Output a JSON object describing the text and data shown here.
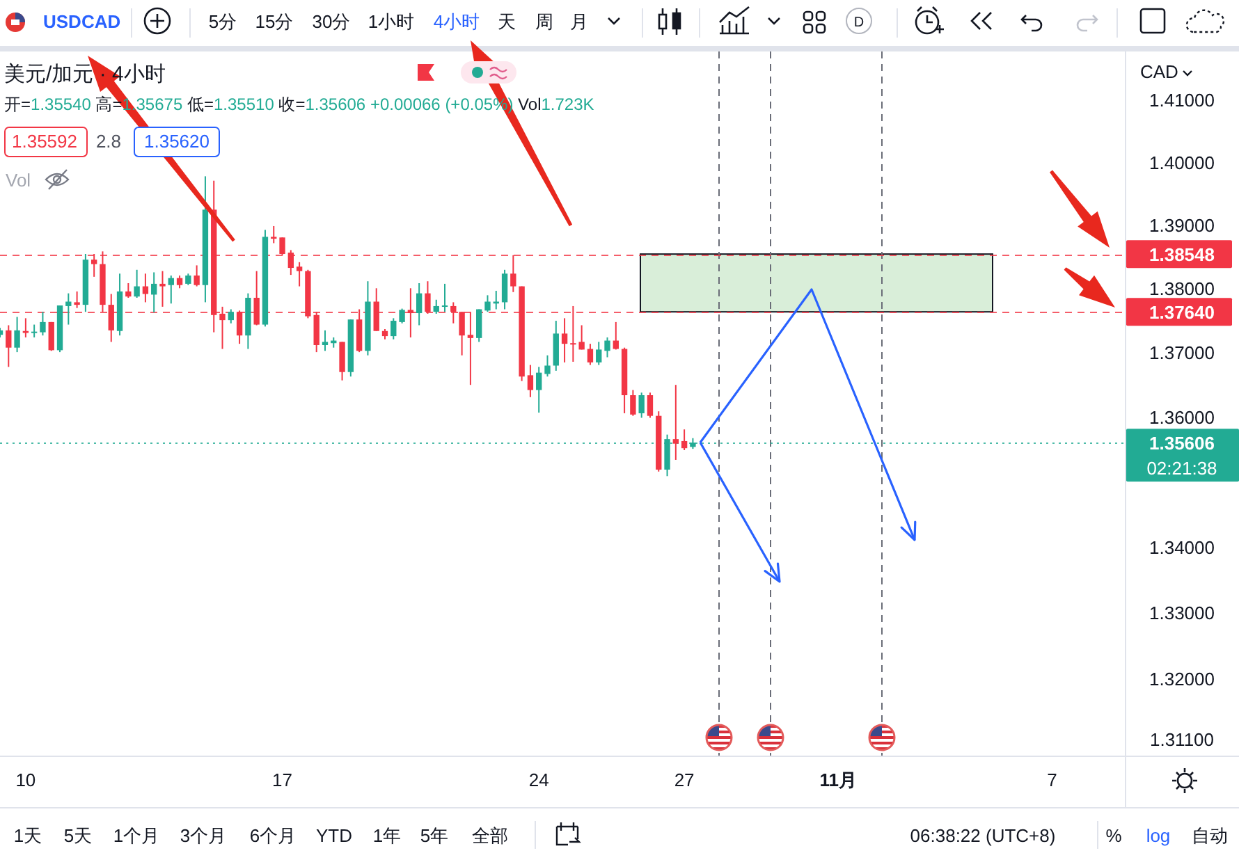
{
  "chart_data": {
    "type": "candlestick",
    "title": "美元/加元 · 4小时",
    "subtitle": "开=1.35540 高=1.35675 低=1.35510 收=1.35606 +0.00066 (+0.05%) Vol1.723K",
    "ylabel": "CAD",
    "categories": [
      null,
      null,
      null,
      "10",
      null,
      null,
      null,
      null,
      null,
      null,
      null,
      null,
      null,
      null,
      null,
      null,
      null,
      null,
      null,
      null,
      null,
      null,
      null,
      null,
      null,
      null,
      null,
      null,
      null,
      null,
      null,
      null,
      null,
      "17",
      null,
      null,
      null,
      null,
      null,
      null,
      null,
      null,
      null,
      null,
      null,
      null,
      null,
      null,
      null,
      null,
      null,
      null,
      null,
      null,
      null,
      null,
      null,
      null,
      null,
      null,
      null,
      null,
      null,
      "24",
      null,
      null,
      null,
      null,
      null,
      null,
      null,
      null,
      null,
      null,
      null,
      null,
      null,
      null,
      null,
      null,
      "27",
      null,
      null,
      null,
      null,
      null,
      null,
      null,
      null,
      null,
      null,
      null,
      null,
      null,
      null,
      null,
      null,
      null,
      "11月",
      null,
      null,
      null,
      null,
      null,
      null,
      null,
      null,
      null,
      null,
      null,
      null,
      null,
      null,
      null,
      null,
      null,
      null,
      null,
      null,
      null,
      null,
      null,
      null,
      "7",
      null,
      null,
      null,
      null,
      null,
      null,
      null,
      null
    ],
    "ohlc": [
      [
        1.3728,
        1.3739,
        1.3724,
        1.3735
      ],
      [
        1.3735,
        1.3743,
        1.3678,
        1.3708
      ],
      [
        1.3708,
        1.3756,
        1.3701,
        1.3735
      ],
      [
        1.3734,
        1.3754,
        1.3724,
        1.3731
      ],
      [
        1.3732,
        1.3744,
        1.3724,
        1.3733
      ],
      [
        1.3732,
        1.3764,
        1.3727,
        1.3748
      ],
      [
        1.3748,
        1.3748,
        1.3703,
        1.3704
      ],
      [
        1.3704,
        1.3774,
        1.3701,
        1.3774
      ],
      [
        1.3773,
        1.3793,
        1.3744,
        1.378
      ],
      [
        1.3779,
        1.3796,
        1.377,
        1.3775
      ],
      [
        1.3775,
        1.3855,
        1.3764,
        1.3846
      ],
      [
        1.3846,
        1.3855,
        1.3819,
        1.3839
      ],
      [
        1.3839,
        1.3859,
        1.3764,
        1.3775
      ],
      [
        1.3775,
        1.3792,
        1.3717,
        1.3735
      ],
      [
        1.3734,
        1.3824,
        1.3727,
        1.3796
      ],
      [
        1.3796,
        1.3809,
        1.3786,
        1.3788
      ],
      [
        1.3788,
        1.383,
        1.3786,
        1.3804
      ],
      [
        1.3804,
        1.3824,
        1.3779,
        1.3792
      ],
      [
        1.3791,
        1.3826,
        1.3763,
        1.3808
      ],
      [
        1.3808,
        1.3828,
        1.3772,
        1.3804
      ],
      [
        1.3806,
        1.3821,
        1.3777,
        1.3817
      ],
      [
        1.3817,
        1.3821,
        1.3801,
        1.3806
      ],
      [
        1.3808,
        1.3824,
        1.3806,
        1.3821
      ],
      [
        1.3821,
        1.3837,
        1.3804,
        1.3806
      ],
      [
        1.3806,
        1.3978,
        1.3779,
        1.3925
      ],
      [
        1.3925,
        1.3971,
        1.3732,
        1.3759
      ],
      [
        1.3761,
        1.3772,
        1.3706,
        1.3751
      ],
      [
        1.3751,
        1.3768,
        1.3746,
        1.3764
      ],
      [
        1.3764,
        1.3766,
        1.3714,
        1.3727
      ],
      [
        1.3727,
        1.3793,
        1.3706,
        1.3786
      ],
      [
        1.3786,
        1.3828,
        1.3743,
        1.3744
      ],
      [
        1.3744,
        1.3893,
        1.3741,
        1.3882
      ],
      [
        1.3882,
        1.3899,
        1.3872,
        1.3879
      ],
      [
        1.3881,
        1.3881,
        1.3853,
        1.3855
      ],
      [
        1.3857,
        1.3861,
        1.3822,
        1.3833
      ],
      [
        1.3835,
        1.3842,
        1.3804,
        1.3828
      ],
      [
        1.3828,
        1.383,
        1.3754,
        1.3757
      ],
      [
        1.3759,
        1.3764,
        1.3701,
        1.3712
      ],
      [
        1.3712,
        1.3735,
        1.3703,
        1.3717
      ],
      [
        1.3715,
        1.3724,
        1.3708,
        1.3719
      ],
      [
        1.3717,
        1.3717,
        1.3657,
        1.367
      ],
      [
        1.367,
        1.3752,
        1.3663,
        1.3752
      ],
      [
        1.3752,
        1.3768,
        1.3701,
        1.3703
      ],
      [
        1.3703,
        1.3812,
        1.3696,
        1.378
      ],
      [
        1.378,
        1.3801,
        1.3734,
        1.3734
      ],
      [
        1.3734,
        1.3737,
        1.3721,
        1.3726
      ],
      [
        1.3726,
        1.3754,
        1.3721,
        1.375
      ],
      [
        1.3748,
        1.3769,
        1.3746,
        1.3767
      ],
      [
        1.3767,
        1.3801,
        1.3724,
        1.3762
      ],
      [
        1.3762,
        1.3809,
        1.3743,
        1.3793
      ],
      [
        1.3793,
        1.3812,
        1.3761,
        1.3764
      ],
      [
        1.3764,
        1.3783,
        1.3761,
        1.3773
      ],
      [
        1.3773,
        1.3808,
        1.3764,
        1.3774
      ],
      [
        1.3773,
        1.3779,
        1.3746,
        1.3764
      ],
      [
        1.3764,
        1.3764,
        1.3696,
        1.3727
      ],
      [
        1.3728,
        1.3764,
        1.365,
        1.3723
      ],
      [
        1.3723,
        1.3768,
        1.3717,
        1.3768
      ],
      [
        1.3766,
        1.379,
        1.3764,
        1.378
      ],
      [
        1.3777,
        1.3797,
        1.3768,
        1.378
      ],
      [
        1.3779,
        1.383,
        1.3768,
        1.3824
      ],
      [
        1.3824,
        1.3853,
        1.3795,
        1.3804
      ],
      [
        1.3804,
        1.3804,
        1.3656,
        1.3663
      ],
      [
        1.3665,
        1.3681,
        1.3631,
        1.3642
      ],
      [
        1.3642,
        1.3678,
        1.3607,
        1.3669
      ],
      [
        1.3667,
        1.3696,
        1.3663,
        1.368
      ],
      [
        1.368,
        1.375,
        1.3672,
        1.373
      ],
      [
        1.373,
        1.3754,
        1.3685,
        1.3714
      ],
      [
        1.3715,
        1.3773,
        1.3686,
        1.3714
      ],
      [
        1.3717,
        1.3743,
        1.3705,
        1.3705
      ],
      [
        1.3706,
        1.3714,
        1.3681,
        1.3685
      ],
      [
        1.3685,
        1.3717,
        1.3681,
        1.3705
      ],
      [
        1.3703,
        1.3724,
        1.3693,
        1.3719
      ],
      [
        1.3719,
        1.3748,
        1.3705,
        1.3706
      ],
      [
        1.3706,
        1.3708,
        1.3606,
        1.3634
      ],
      [
        1.3634,
        1.3642,
        1.3602,
        1.3604
      ],
      [
        1.3606,
        1.3638,
        1.3599,
        1.3634
      ],
      [
        1.3634,
        1.3638,
        1.3599,
        1.3602
      ],
      [
        1.3602,
        1.3609,
        1.3516,
        1.3519
      ],
      [
        1.3519,
        1.3573,
        1.3509,
        1.3566
      ],
      [
        1.3566,
        1.365,
        1.3534,
        1.3559
      ],
      [
        1.3563,
        1.3581,
        1.3549,
        1.3552
      ],
      [
        1.3554,
        1.35675,
        1.3551,
        1.35606
      ],
      null,
      null,
      null,
      null,
      null,
      null,
      null,
      null,
      null,
      null,
      null,
      null,
      null,
      null,
      null,
      null,
      null,
      null,
      null,
      null,
      null,
      null,
      null,
      null,
      null,
      null,
      null,
      null,
      null,
      null,
      null,
      null,
      null,
      null,
      null,
      null,
      null,
      null,
      null,
      null,
      null,
      null,
      null,
      null,
      null,
      null,
      null,
      null,
      null,
      null
    ],
    "ylim": [
      1.3086,
      1.4178
    ],
    "log": true,
    "yticks": [
      {
        "value": 1.311,
        "label": "1.31100"
      },
      {
        "value": 1.32,
        "label": "1.32000"
      },
      {
        "value": 1.33,
        "label": "1.33000"
      },
      {
        "value": 1.34,
        "label": "1.34000"
      },
      {
        "value": 1.36,
        "label": "1.36000"
      },
      {
        "value": 1.37,
        "label": "1.37000"
      },
      {
        "value": 1.38,
        "label": "1.38000"
      },
      {
        "value": 1.39,
        "label": "1.39000"
      },
      {
        "value": 1.4,
        "label": "1.40000"
      },
      {
        "value": 1.41,
        "label": "1.41000"
      }
    ],
    "bands": [
      {
        "axis": "y",
        "from": 1.3764,
        "to": 1.38548,
        "color": "#d9eed9"
      }
    ],
    "ref_lines": [
      {
        "axis": "y",
        "value": 1.38548,
        "label": "1.38548",
        "color": "#f23645",
        "line_style": "dashed"
      },
      {
        "axis": "y",
        "value": 1.3764,
        "label": "1.37640",
        "color": "#f23645",
        "line_style": "dashed"
      },
      {
        "axis": "y",
        "value": 1.35606,
        "label": "1.35606\n02:21:38",
        "color": "#22ab94",
        "line_style": "dotted"
      }
    ],
    "annotations": [
      "USDCAD",
      "5分",
      "15分",
      "30分",
      "1小时",
      "4小时",
      "天",
      "周",
      "月",
      "D",
      "1.35592",
      "2.8",
      "1.35620",
      "Vol",
      "1天",
      "5天",
      "1个月",
      "3个月",
      "6个月",
      "YTD",
      "1年",
      "5年",
      "全部",
      "06:38:22 (UTC+8)",
      "%",
      "log",
      "自动"
    ]
  }
}
